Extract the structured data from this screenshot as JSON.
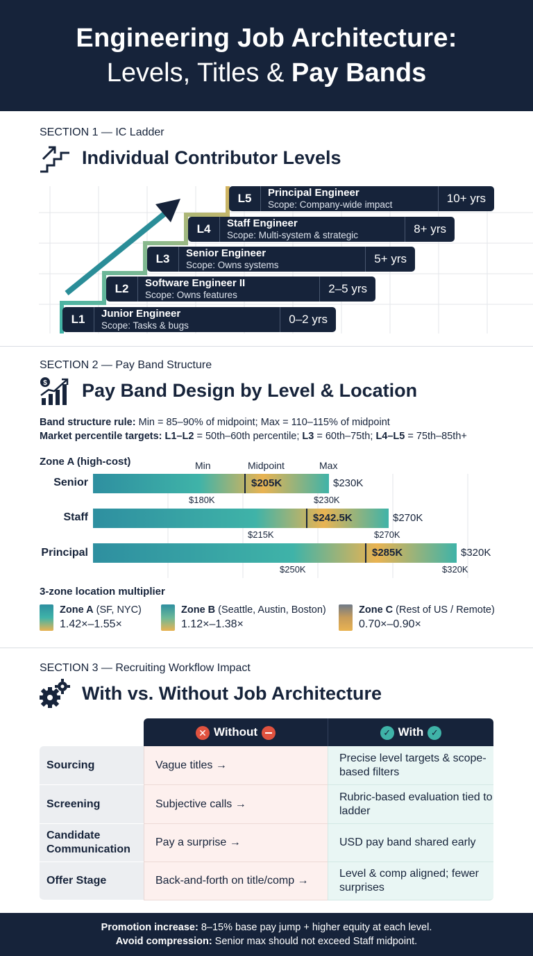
{
  "header": {
    "title_line1": "Engineering Job Architecture:",
    "title_line2_plain": "Levels, Titles & ",
    "title_line2_bold": "Pay Bands"
  },
  "section1": {
    "label": "SECTION 1 — IC Ladder",
    "title": "Individual Contributor Levels",
    "levels": [
      {
        "level": "L1",
        "role": "Junior Engineer",
        "scope": "Scope: Tasks & bugs",
        "years": "0–2 yrs"
      },
      {
        "level": "L2",
        "role": "Software Engineer II",
        "scope": "Scope: Owns features",
        "years": "2–5 yrs"
      },
      {
        "level": "L3",
        "role": "Senior Engineer",
        "scope": "Scope: Owns systems",
        "years": "5+ yrs"
      },
      {
        "level": "L4",
        "role": "Staff Engineer",
        "scope": "Scope: Multi-system & strategic",
        "years": "8+ yrs"
      },
      {
        "level": "L5",
        "role": "Principal Engineer",
        "scope": "Scope: Company-wide impact",
        "years": "10+ yrs"
      }
    ]
  },
  "section2": {
    "label": "SECTION 2 — Pay Band Structure",
    "title": "Pay Band Design by Level & Location",
    "rule1_bold": "Band structure rule:",
    "rule1_text": " Min = 85–90% of midpoint; Max = 110–115% of midpoint",
    "rule2_bold": "Market percentile targets: L1–L2",
    "rule2_text_a": " = 50th–60th percentile; ",
    "rule2_bold_b": "L3",
    "rule2_text_b": " = 60th–75th; ",
    "rule2_bold_c": "L4–L5",
    "rule2_text_c": " = 75th–85th+",
    "zone_heading": "Zone A (high-cost)",
    "col_min": "Min",
    "col_mid": "Midpoint",
    "col_max": "Max",
    "bands": [
      {
        "name": "Senior",
        "min_label": "$180K",
        "mid_label": "$205K",
        "max_label": "$230K",
        "max_tick": "$230K"
      },
      {
        "name": "Staff",
        "min_label": "$215K",
        "mid_label": "$242.5K",
        "max_label": "$270K",
        "max_tick": "$270K"
      },
      {
        "name": "Principal",
        "min_label": "$250K",
        "mid_label": "$285K",
        "max_label": "$320K",
        "max_tick": "$320K"
      }
    ],
    "location_title": "3-zone location multiplier",
    "zones": [
      {
        "name": "Zone A",
        "cities": " (SF, NYC)",
        "range": "1.42×–1.55×"
      },
      {
        "name": "Zone B",
        "cities": " (Seattle, Austin, Boston)",
        "range": "1.12×–1.38×"
      },
      {
        "name": "Zone C",
        "cities": " (Rest of US / Remote)",
        "range": "0.70×–0.90×"
      }
    ]
  },
  "section3": {
    "label": "SECTION 3 — Recruiting Workflow Impact",
    "title": "With vs. Without Job Architecture",
    "col_without": "Without",
    "col_with": "With",
    "rows": [
      {
        "stage": "Sourcing",
        "without": "Vague titles →",
        "with": "Precise level targets & scope-based filters"
      },
      {
        "stage": "Screening",
        "without": "Subjective calls →",
        "with": "Rubric-based evaluation tied to ladder"
      },
      {
        "stage": "Candidate Communication",
        "without": "Pay a surprise →",
        "with": "USD pay band shared early"
      },
      {
        "stage": "Offer Stage",
        "without": "Back-and-forth on title/comp →",
        "with": "Level & comp aligned; fewer surprises"
      }
    ]
  },
  "footer": {
    "line1_bold": "Promotion increase:",
    "line1_text": " 8–15% base pay jump + higher equity at each level.",
    "line2_bold": "Avoid compression:",
    "line2_text": " Senior max should not exceed Staff midpoint."
  },
  "colors": {
    "navy": "#16233a",
    "teal": "#3fb3a8",
    "gold": "#e9b352",
    "red": "#e0523f"
  }
}
